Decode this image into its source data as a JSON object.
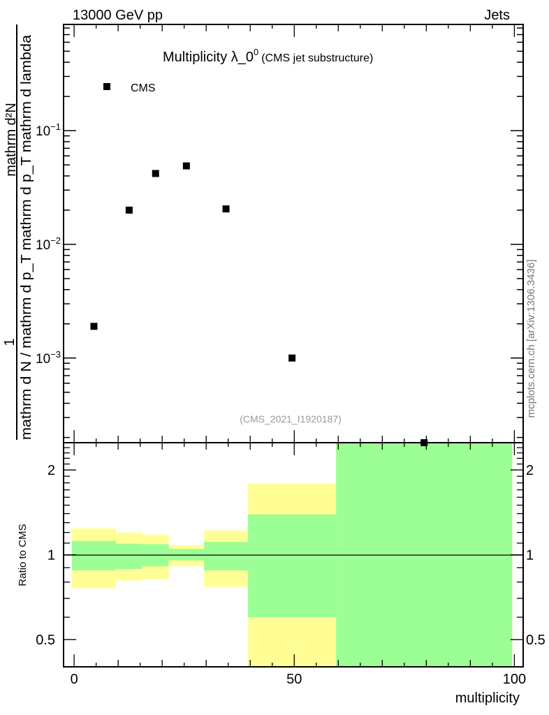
{
  "header": {
    "left": "13000 GeV pp",
    "right": "Jets"
  },
  "side_label": "mcplots.cern.ch [arXiv:1306.3436]",
  "chart_data": [
    {
      "type": "scatter",
      "title": "Multiplicity λ_0",
      "title_sup": "0",
      "subtitle": "(CMS jet substructure)",
      "analysis_label": "(CMS_2021_I1920187)",
      "ylabel_num_one": "1",
      "ylabel_num": "mathrm d²N",
      "ylabel_den": "mathrm d N / mathrm d p_T mathrm d p_T mathrm d lambda",
      "yscale": "log",
      "ylim": [
        0.00018,
        0.86
      ],
      "xlim": [
        -2.4,
        102
      ],
      "yticks": [
        {
          "v": 0.1,
          "exp": "−1"
        },
        {
          "v": 0.01,
          "exp": "−2"
        },
        {
          "v": 0.001,
          "exp": "−3"
        }
      ],
      "ytick_base": "10",
      "legend": {
        "label": "CMS",
        "position": "top-left"
      },
      "series": [
        {
          "name": "CMS",
          "color": "#000000",
          "x": [
            4.5,
            12.5,
            18.5,
            25.5,
            34.5,
            49.5,
            79.5
          ],
          "y": [
            0.0019,
            0.02,
            0.042,
            0.049,
            0.0205,
            0.001,
            0.00018
          ]
        }
      ]
    },
    {
      "type": "area",
      "ylabel": "Ratio to CMS",
      "xlabel": "multiplicity",
      "yscale": "log",
      "ylim": [
        0.4,
        2.5
      ],
      "xlim": [
        -2.4,
        102
      ],
      "xticks": [
        "0",
        "50",
        "100"
      ],
      "xtick_values": [
        0,
        50,
        100
      ],
      "yticks": [
        "0.5",
        "1",
        "2"
      ],
      "ytick_values": [
        0.5,
        1,
        2
      ],
      "reference_line": 1,
      "colors": {
        "inner": "#9cff96",
        "outer": "#ffff96"
      },
      "bins": [
        {
          "lo": -0.5,
          "hi": 9.5,
          "outer": [
            0.76,
            1.24
          ],
          "inner": [
            0.88,
            1.12
          ]
        },
        {
          "lo": 9.5,
          "hi": 15.5,
          "outer": [
            0.81,
            1.2
          ],
          "inner": [
            0.89,
            1.095
          ]
        },
        {
          "lo": 15.5,
          "hi": 21.5,
          "outer": [
            0.82,
            1.18
          ],
          "inner": [
            0.91,
            1.09
          ]
        },
        {
          "lo": 21.5,
          "hi": 29.5,
          "outer": [
            0.91,
            1.08
          ],
          "inner": [
            0.955,
            1.05
          ]
        },
        {
          "lo": 29.5,
          "hi": 39.5,
          "outer": [
            0.77,
            1.22
          ],
          "inner": [
            0.88,
            1.11
          ]
        },
        {
          "lo": 39.5,
          "hi": 59.5,
          "outer": [
            0.3,
            1.79
          ],
          "inner": [
            0.6,
            1.39
          ]
        },
        {
          "lo": 59.5,
          "hi": 99.5,
          "outer": [
            0.3,
            3.0
          ],
          "inner": [
            0.3,
            3.0
          ]
        }
      ]
    }
  ]
}
